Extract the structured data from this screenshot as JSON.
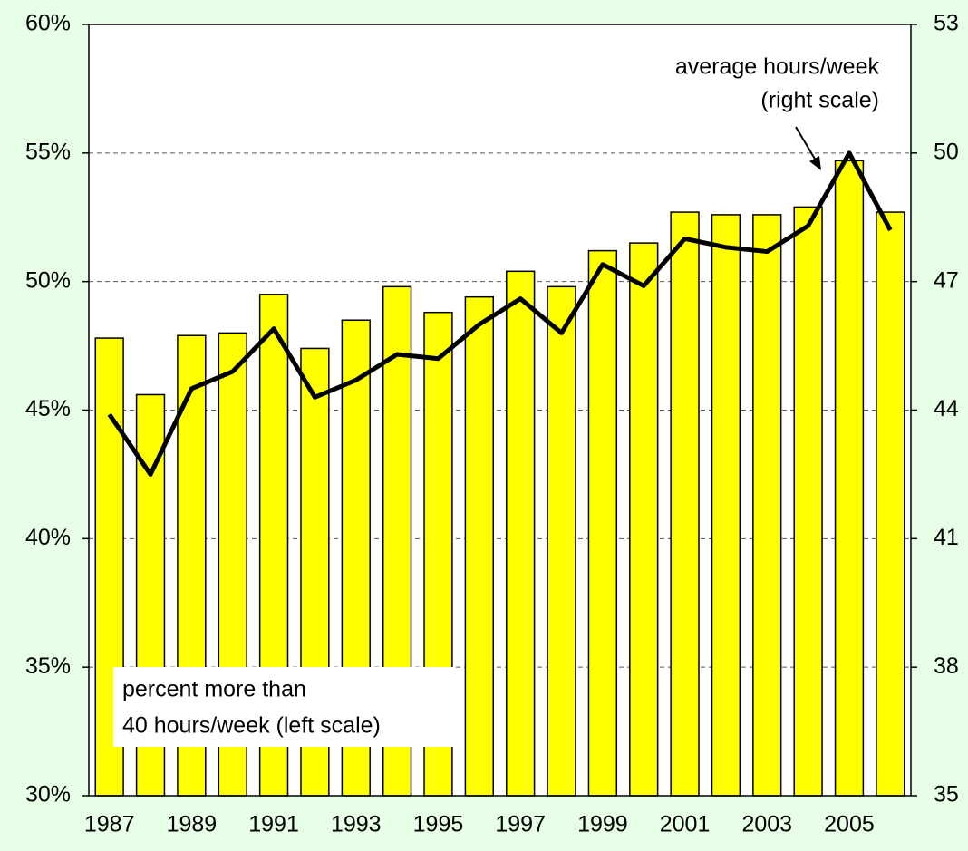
{
  "chart_data": {
    "type": "bar_line",
    "categories": [
      "1987",
      null,
      "1989",
      null,
      "1991",
      null,
      "1993",
      null,
      "1995",
      null,
      "1997",
      null,
      "1999",
      null,
      "2001",
      null,
      "2003",
      null,
      "2005",
      null
    ],
    "series": [
      {
        "type": "bar",
        "color": "#ffff00",
        "values": [
          47.8,
          45.6,
          47.9,
          48.0,
          49.5,
          47.4,
          48.5,
          49.8,
          48.8,
          49.4,
          50.4,
          49.8,
          51.2,
          51.5,
          52.7,
          52.6,
          52.6,
          52.9,
          54.7,
          52.7
        ]
      },
      {
        "type": "line",
        "axis": "y2",
        "color": "#000000",
        "values": [
          43.9,
          42.5,
          44.5,
          44.9,
          45.9,
          44.3,
          44.7,
          45.3,
          45.2,
          46.0,
          46.6,
          45.8,
          47.4,
          46.9,
          48.0,
          47.8,
          47.7,
          48.3,
          50.0,
          48.2
        ]
      }
    ],
    "ylim": [
      30,
      60
    ],
    "yticks": [
      {
        "value": 30,
        "label": "30%"
      },
      {
        "value": 35,
        "label": "35%"
      },
      {
        "value": 40,
        "label": "40%"
      },
      {
        "value": 45,
        "label": "45%"
      },
      {
        "value": 50,
        "label": "50%"
      },
      {
        "value": 55,
        "label": "55%"
      },
      {
        "value": 60,
        "label": "60%"
      }
    ],
    "y2lim": [
      35,
      53
    ],
    "y2ticks": [
      35,
      38,
      41,
      44,
      47,
      50,
      53
    ],
    "grid": true,
    "annotations": [
      {
        "lines": [
          "average hours/week",
          "(right scale)"
        ]
      },
      {
        "lines": [
          "percent more than",
          "40 hours/week (left scale)"
        ]
      }
    ]
  }
}
